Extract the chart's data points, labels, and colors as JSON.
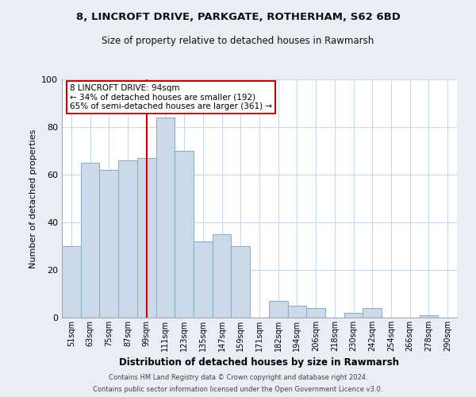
{
  "title1": "8, LINCROFT DRIVE, PARKGATE, ROTHERHAM, S62 6BD",
  "title2": "Size of property relative to detached houses in Rawmarsh",
  "xlabel": "Distribution of detached houses by size in Rawmarsh",
  "ylabel": "Number of detached properties",
  "bar_labels": [
    "51sqm",
    "63sqm",
    "75sqm",
    "87sqm",
    "99sqm",
    "111sqm",
    "123sqm",
    "135sqm",
    "147sqm",
    "159sqm",
    "171sqm",
    "182sqm",
    "194sqm",
    "206sqm",
    "218sqm",
    "230sqm",
    "242sqm",
    "254sqm",
    "266sqm",
    "278sqm",
    "290sqm"
  ],
  "bar_heights": [
    30,
    65,
    62,
    66,
    67,
    84,
    70,
    32,
    35,
    30,
    0,
    7,
    5,
    4,
    0,
    2,
    4,
    0,
    0,
    1,
    0
  ],
  "bar_color": "#ccd9e8",
  "bar_edge_color": "#8ab0cc",
  "vline_x": 4.0,
  "vline_color": "#cc0000",
  "annotation_text": "8 LINCROFT DRIVE: 94sqm\n← 34% of detached houses are smaller (192)\n65% of semi-detached houses are larger (361) →",
  "annotation_box_color": "#ffffff",
  "annotation_box_edge": "#cc0000",
  "ylim": [
    0,
    100
  ],
  "yticks": [
    0,
    20,
    40,
    60,
    80,
    100
  ],
  "footer1": "Contains HM Land Registry data © Crown copyright and database right 2024.",
  "footer2": "Contains public sector information licensed under the Open Government Licence v3.0.",
  "bg_color": "#e8eef4",
  "plot_bg_color": "#ffffff",
  "grid_color": "#c8d8e8"
}
